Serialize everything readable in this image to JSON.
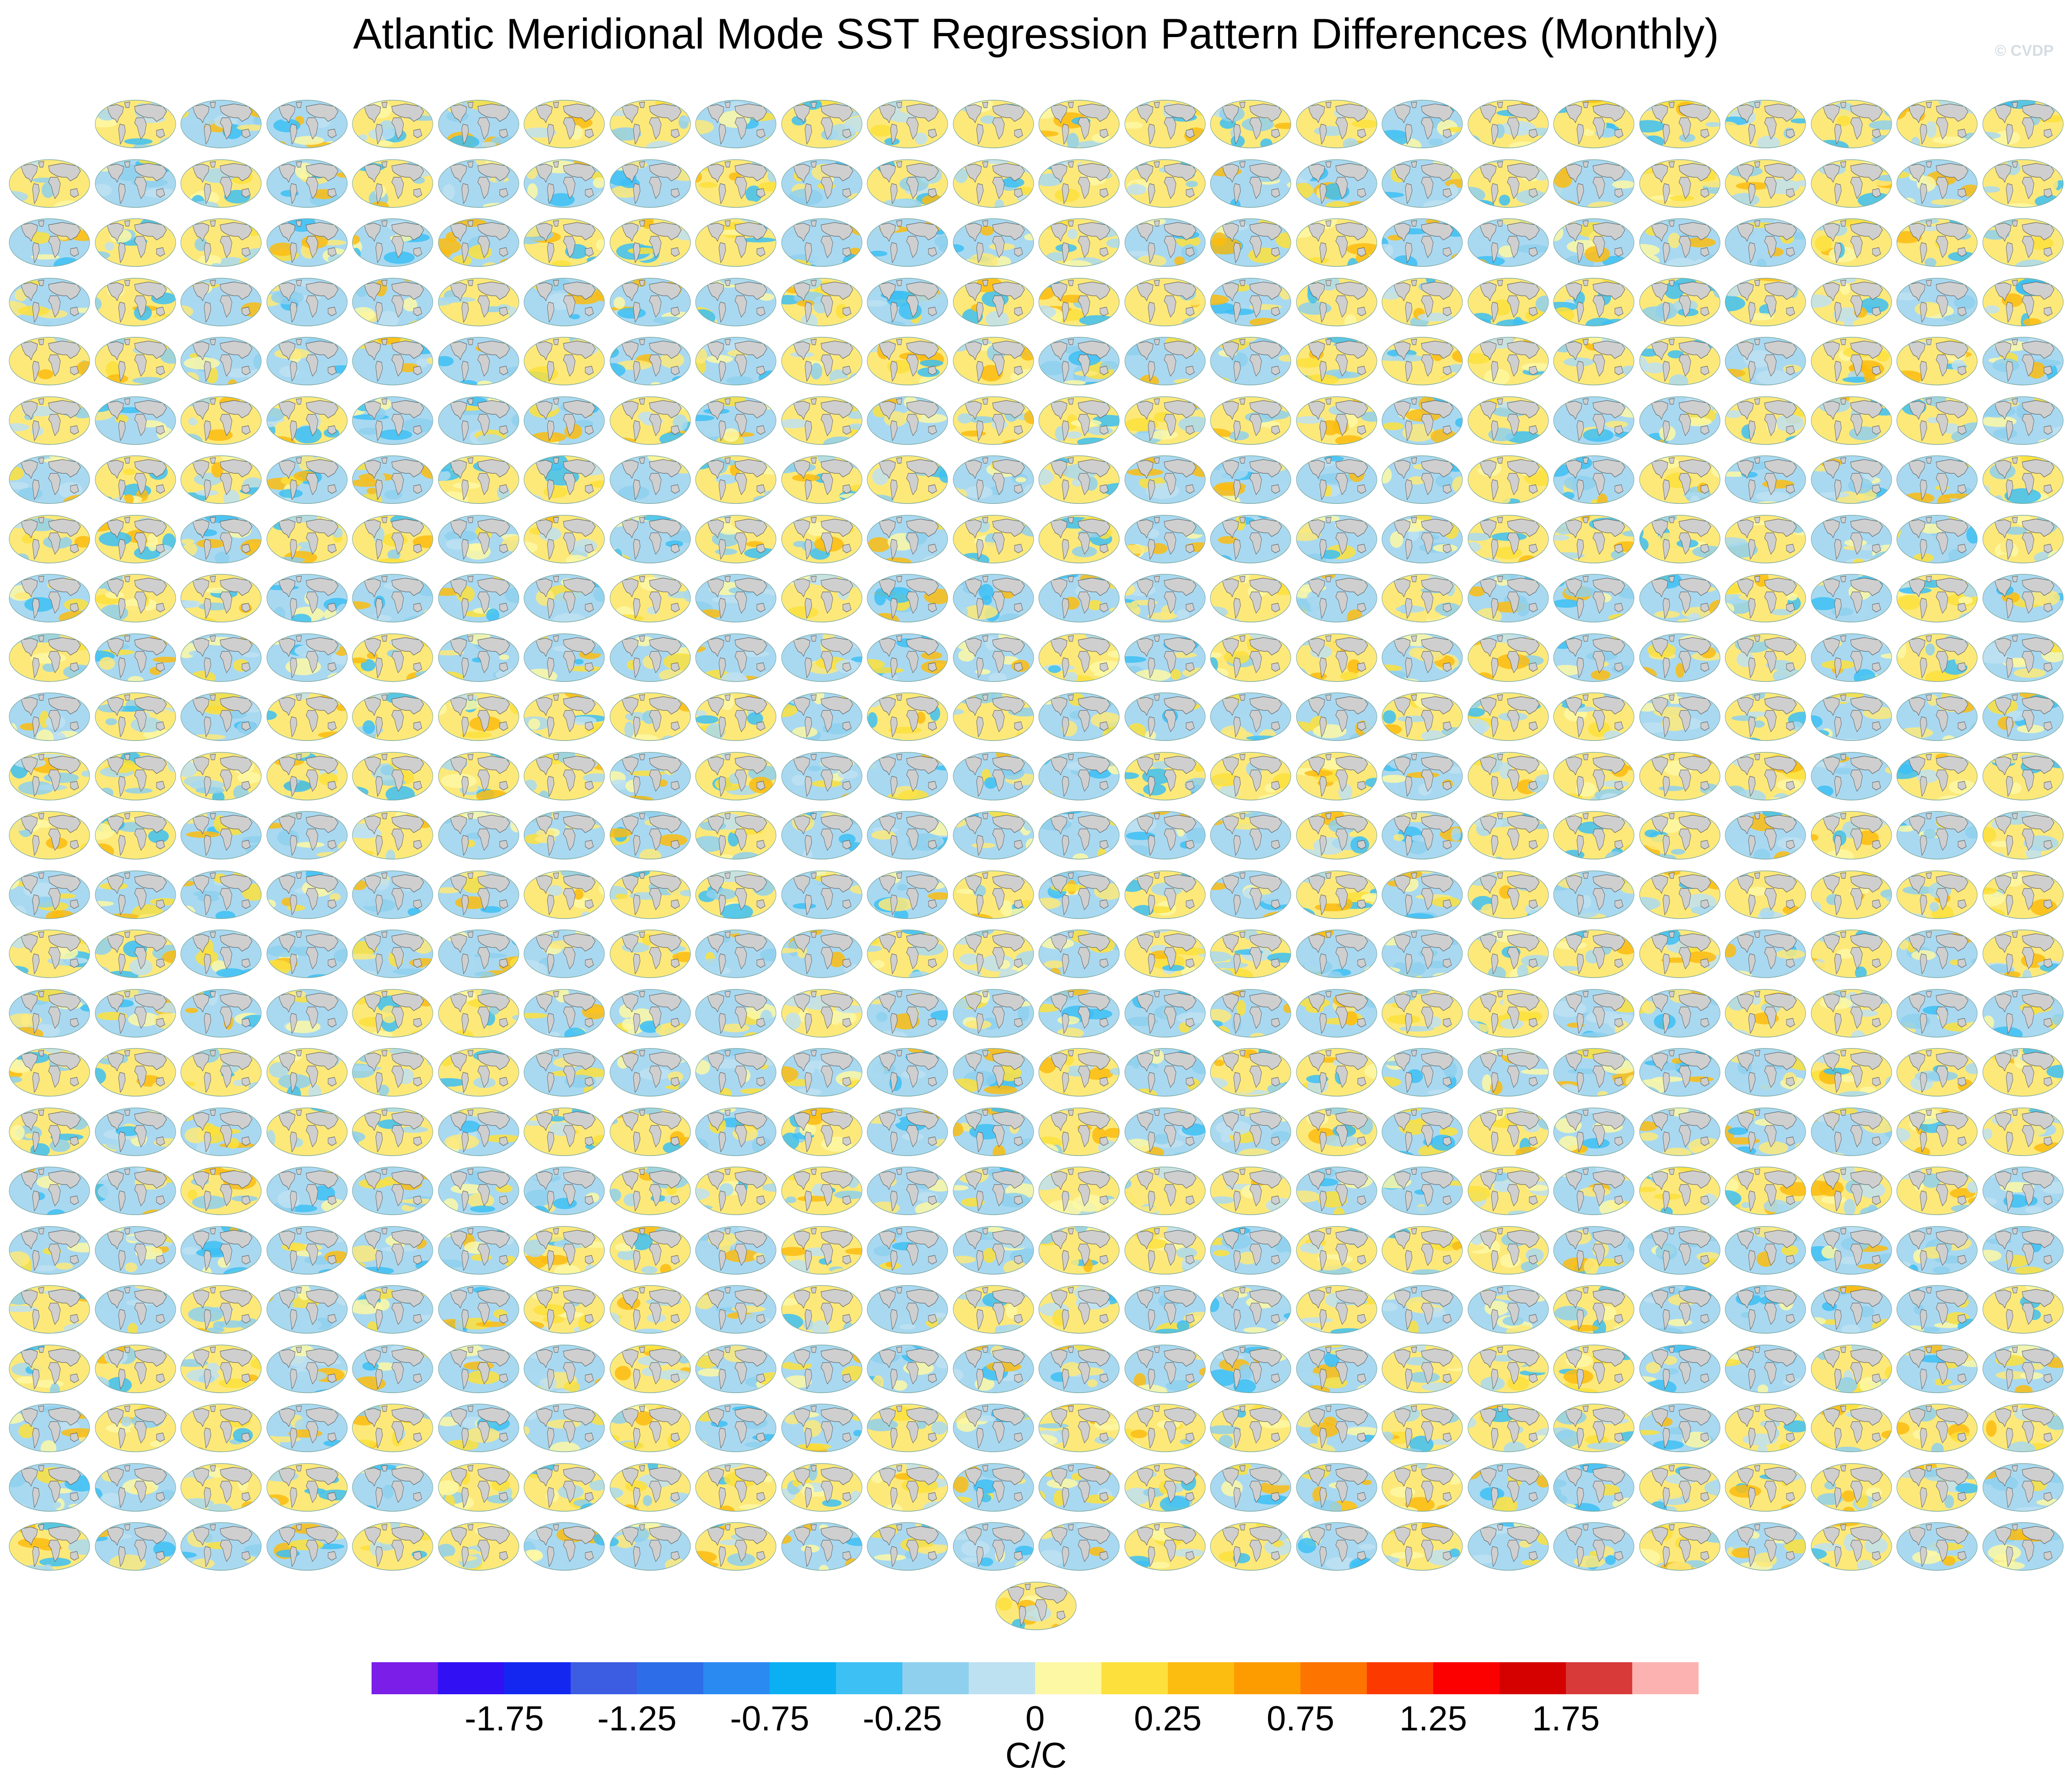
{
  "title": "Atlantic Meridional Mode SST Regression Pattern Differences (Monthly)",
  "watermark": "© CVDP",
  "panels": {
    "rows": 25,
    "cols": 24,
    "first_row_cols": 23,
    "trailing_single": 1,
    "kind": "world map SST regression difference"
  },
  "colorbar": {
    "colors": [
      "#7b1ee8",
      "#3210f4",
      "#1427f0",
      "#3c5ce2",
      "#2d6ee8",
      "#2b8af2",
      "#0bb0f2",
      "#3dc0f4",
      "#8fd0ef",
      "#bee1f2",
      "#fdf8a4",
      "#fde03c",
      "#fcbc10",
      "#fd9c00",
      "#fd7400",
      "#fc3a00",
      "#fc0000",
      "#d50000",
      "#d83a3a",
      "#fdb2b2"
    ],
    "tick_labels": [
      "-1.75",
      "-1.25",
      "-0.75",
      "-0.25",
      "0",
      "0.25",
      "0.75",
      "1.25",
      "1.75"
    ],
    "units": "C/C"
  }
}
